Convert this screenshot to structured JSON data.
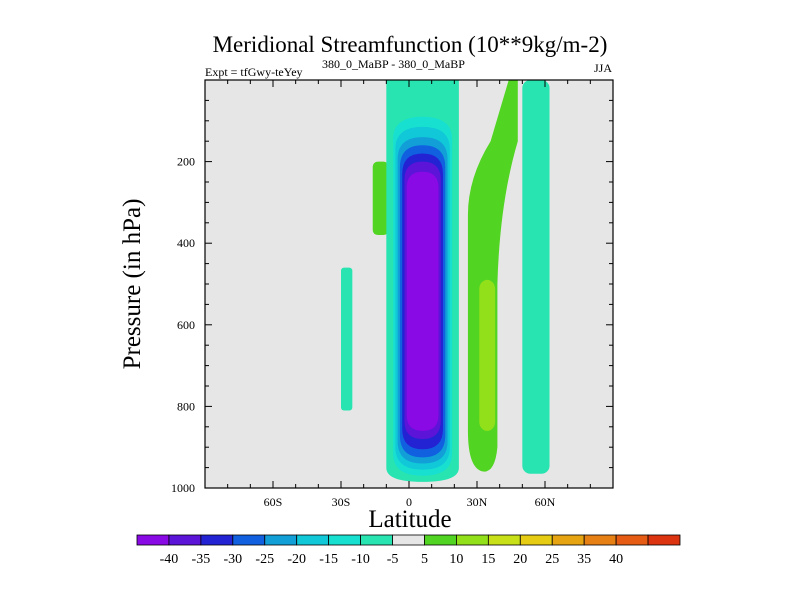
{
  "chart_data": {
    "type": "heatmap",
    "subtype": "filled-contour",
    "title": "Meridional Streamfunction (10**9kg/m-2)",
    "left_string": "Expt = tfGwy-teYey",
    "center_string": "380_0_MaBP - 380_0_MaBP",
    "right_string": "JJA",
    "xlabel": "Latitude",
    "ylabel": "Pressure (in hPa)",
    "xlim": [
      -90,
      90
    ],
    "ylim": [
      1000,
      0
    ],
    "x_ticks": [
      {
        "value": -60,
        "label": "60S"
      },
      {
        "value": -30,
        "label": "30S"
      },
      {
        "value": 0,
        "label": "0"
      },
      {
        "value": 30,
        "label": "30N"
      },
      {
        "value": 60,
        "label": "60N"
      }
    ],
    "y_ticks": [
      {
        "value": 200,
        "label": "200"
      },
      {
        "value": 400,
        "label": "400"
      },
      {
        "value": 600,
        "label": "600"
      },
      {
        "value": 800,
        "label": "800"
      },
      {
        "value": 1000,
        "label": "1000"
      }
    ],
    "background_color": "#e6e6e6",
    "colorbar": {
      "labels": [
        "-40",
        "-35",
        "-30",
        "-25",
        "-20",
        "-15",
        "-10",
        "-5",
        "5",
        "10",
        "15",
        "20",
        "25",
        "35",
        "40"
      ],
      "colors": [
        "#8a0ae6",
        "#5c14d8",
        "#2323d4",
        "#1060e0",
        "#129fd8",
        "#10c8d8",
        "#18e0d0",
        "#28e4b0",
        "#e6e6e6",
        "#52d422",
        "#92e01a",
        "#c8e018",
        "#e6cc12",
        "#e6a312",
        "#e67f14",
        "#e65c14",
        "#dc3410"
      ]
    },
    "features": [
      {
        "name": "Tropical negative cell (southern Hadley)",
        "lat_range": [
          -10,
          22
        ],
        "p_range": [
          0,
          985
        ],
        "min_value": -40,
        "levels": [
          -5,
          -10,
          -15,
          -20,
          -25,
          -30,
          -35
        ]
      },
      {
        "name": "Northern mid-latitude positive cell",
        "lat_range": [
          26,
          48
        ],
        "p_range": [
          0,
          960
        ],
        "max_value": 15,
        "levels": [
          5,
          10
        ]
      },
      {
        "name": "Northern high-latitude negative band",
        "lat_range": [
          50,
          62
        ],
        "p_range": [
          0,
          965
        ],
        "value": -5
      },
      {
        "name": "Southern subtropical upper positive patch",
        "lat_range": [
          -16,
          -9
        ],
        "p_range": [
          200,
          380
        ],
        "value": 5
      },
      {
        "name": "Southern mid-latitude negative strip",
        "lat_range": [
          -30,
          -25
        ],
        "p_range": [
          460,
          810
        ],
        "value": -5
      }
    ]
  }
}
